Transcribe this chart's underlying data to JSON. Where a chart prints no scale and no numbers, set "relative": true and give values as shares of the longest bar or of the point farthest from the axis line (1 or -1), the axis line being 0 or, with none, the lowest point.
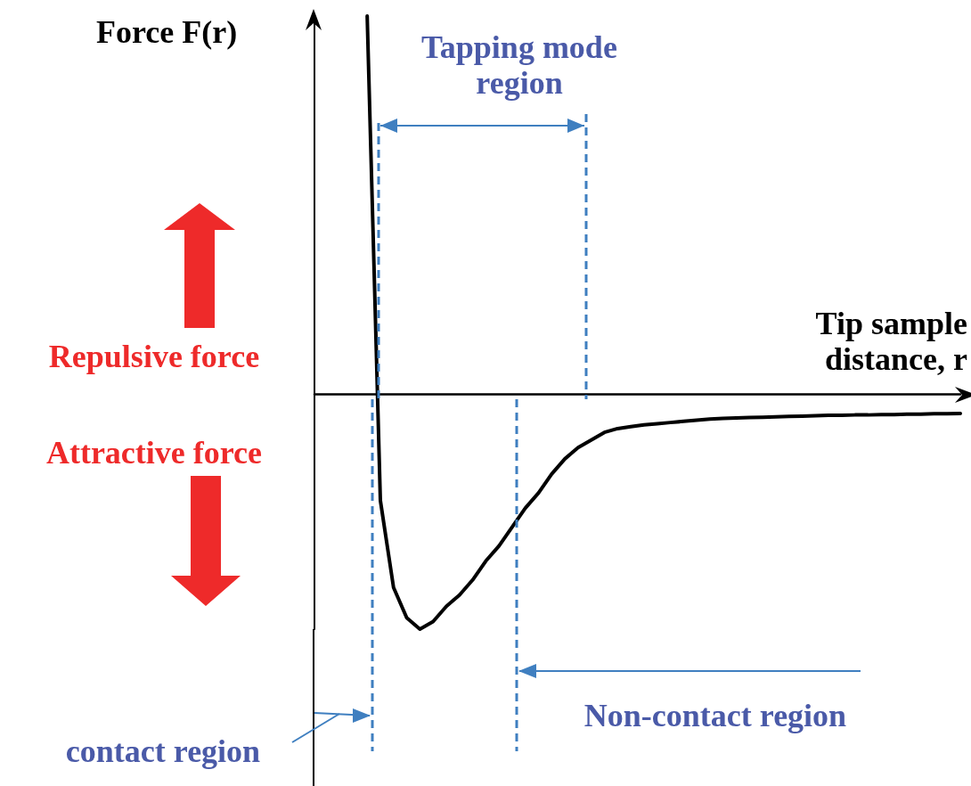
{
  "chart_data": {
    "type": "line",
    "relative": true,
    "xlabel": "Tip sample distance, r",
    "ylabel": "Force F(r)",
    "color": "#000000",
    "marker": "none",
    "line_style": "solid",
    "grid": false,
    "categories": [
      null,
      null,
      null,
      null,
      null,
      null,
      null,
      null,
      null,
      null,
      null,
      null,
      null,
      null,
      null,
      null,
      null,
      null,
      null,
      null,
      null,
      null,
      null,
      null,
      null,
      null,
      null,
      null,
      null,
      null,
      null,
      null,
      null,
      null,
      null,
      null,
      null,
      null,
      null,
      null,
      null,
      null,
      null,
      null,
      null,
      null,
      null,
      null,
      null,
      null
    ],
    "values": [
      null,
      null,
      null,
      null,
      1,
      -0.28,
      -0.51,
      -0.59,
      -0.62,
      -0.6,
      -0.56,
      -0.53,
      -0.49,
      -0.44,
      -0.4,
      -0.35,
      -0.3,
      -0.26,
      -0.21,
      -0.17,
      -0.14,
      -0.12,
      -0.1,
      -0.09,
      -0.085,
      -0.08,
      -0.077,
      -0.074,
      -0.071,
      -0.068,
      -0.065,
      -0.063,
      -0.062,
      -0.061,
      -0.06,
      -0.059,
      -0.058,
      -0.057,
      -0.056,
      -0.055,
      -0.055,
      -0.054,
      -0.054,
      -0.053,
      -0.053,
      -0.052,
      -0.052,
      -0.051,
      -0.051,
      -0.05
    ],
    "annotations": [
      "Tapping mode region",
      "Repulsive force",
      "Attractive force",
      "Non-contact region",
      "contact region"
    ]
  }
}
